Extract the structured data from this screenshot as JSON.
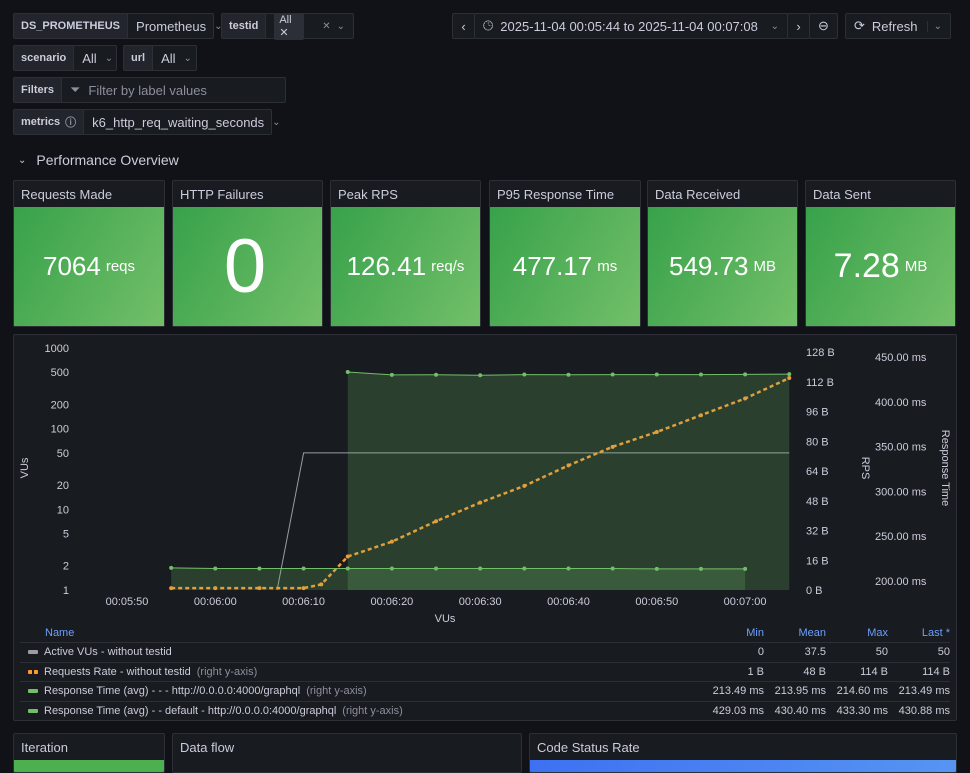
{
  "vars": {
    "ds": {
      "label": "DS_PROMETHEUS",
      "value": "Prometheus"
    },
    "testid": {
      "label": "testid",
      "chip": "All"
    },
    "scenario": {
      "label": "scenario",
      "value": "All"
    },
    "url": {
      "label": "url",
      "value": "All"
    },
    "filters": {
      "label": "Filters",
      "placeholder": "Filter by label values"
    },
    "metrics": {
      "label": "metrics",
      "value": "k6_http_req_waiting_seconds"
    }
  },
  "toolbar": {
    "time_range": "2025-11-04 00:05:44 to 2025-11-04 00:07:08",
    "refresh": "Refresh"
  },
  "row_title": "Performance Overview",
  "stats": [
    {
      "title": "Requests Made",
      "value": "7064",
      "unit": "reqs"
    },
    {
      "title": "HTTP Failures",
      "value": "0",
      "unit": ""
    },
    {
      "title": "Peak RPS",
      "value": "126.41",
      "unit": "req/s"
    },
    {
      "title": "P95 Response Time",
      "value": "477.17",
      "unit": "ms"
    },
    {
      "title": "Data Received",
      "value": "549.73",
      "unit": "MB"
    },
    {
      "title": "Data Sent",
      "value": "7.28",
      "unit": "MB"
    }
  ],
  "chart_data": {
    "type": "line",
    "xlabel": "VUs",
    "ylabel_left": "VUs",
    "ylabel_rps": "RPS",
    "ylabel_rt": "Response Time",
    "x_ticks": [
      "00:05:50",
      "00:06:00",
      "00:06:10",
      "00:06:20",
      "00:06:30",
      "00:06:40",
      "00:06:50",
      "00:07:00"
    ],
    "left_ticks": [
      "1",
      "2",
      "5",
      "10",
      "20",
      "50",
      "100",
      "200",
      "500",
      "1000"
    ],
    "left_scale": "log",
    "left_range": [
      1,
      1000
    ],
    "rps_ticks": [
      "0 B",
      "16 B",
      "32 B",
      "48 B",
      "64 B",
      "80 B",
      "96 B",
      "112 B",
      "128 B"
    ],
    "rps_range": [
      0,
      128
    ],
    "rt_ticks": [
      "200.00 ms",
      "250.00 ms",
      "300.00 ms",
      "350.00 ms",
      "400.00 ms",
      "450.00 ms"
    ],
    "rt_range": [
      200,
      450
    ],
    "series": [
      {
        "name": "Active VUs - without testid",
        "axis": "left",
        "color": "#9b9ba6",
        "points": [
          [
            "00:06:07",
            0
          ],
          [
            "00:06:10",
            50
          ],
          [
            "00:07:05",
            50
          ]
        ]
      },
      {
        "name": "Requests Rate - without testid",
        "axis": "rps",
        "color": "#ff9830",
        "dashed": true,
        "points": [
          [
            "00:05:55",
            1
          ],
          [
            "00:06:00",
            1
          ],
          [
            "00:06:05",
            1
          ],
          [
            "00:06:10",
            1
          ],
          [
            "00:06:12",
            3
          ],
          [
            "00:06:15",
            18
          ],
          [
            "00:06:20",
            26
          ],
          [
            "00:06:25",
            37
          ],
          [
            "00:06:30",
            47
          ],
          [
            "00:06:35",
            56
          ],
          [
            "00:06:40",
            67
          ],
          [
            "00:06:45",
            77
          ],
          [
            "00:06:50",
            85
          ],
          [
            "00:06:55",
            94
          ],
          [
            "00:07:00",
            103
          ],
          [
            "00:07:05",
            114
          ]
        ]
      },
      {
        "name": "Response Time (avg) - - - http://0.0.0.0:4000/graphql",
        "axis": "rt",
        "color": "#73bf69",
        "fill": true,
        "points": [
          [
            "00:05:55",
            214.6
          ],
          [
            "00:06:00",
            213.9
          ],
          [
            "00:06:05",
            213.9
          ],
          [
            "00:06:10",
            213.9
          ],
          [
            "00:06:15",
            213.9
          ],
          [
            "00:06:20",
            213.9
          ],
          [
            "00:06:25",
            213.9
          ],
          [
            "00:06:30",
            213.9
          ],
          [
            "00:06:35",
            213.9
          ],
          [
            "00:06:40",
            213.9
          ],
          [
            "00:06:45",
            213.9
          ],
          [
            "00:06:50",
            213.5
          ],
          [
            "00:06:55",
            213.5
          ],
          [
            "00:07:00",
            213.49
          ]
        ]
      },
      {
        "name": "Response Time (avg) - - default - http://0.0.0.0:4000/graphql",
        "axis": "rt",
        "color": "#73bf69",
        "fill": true,
        "points": [
          [
            "00:06:15",
            433.3
          ],
          [
            "00:06:20",
            430
          ],
          [
            "00:06:25",
            430.2
          ],
          [
            "00:06:30",
            429.6
          ],
          [
            "00:06:35",
            430.4
          ],
          [
            "00:06:40",
            430.2
          ],
          [
            "00:06:45",
            430.4
          ],
          [
            "00:06:50",
            430.4
          ],
          [
            "00:06:55",
            430.4
          ],
          [
            "00:07:00",
            430.6
          ],
          [
            "00:07:05",
            430.88
          ]
        ]
      }
    ]
  },
  "legend": {
    "headers": [
      "Name",
      "Min",
      "Mean",
      "Max",
      "Last *"
    ],
    "rows": [
      {
        "name": "Active VUs - without testid",
        "suffix": "",
        "color": "#9b9ba6",
        "min": "0",
        "mean": "37.5",
        "max": "50",
        "last": "50"
      },
      {
        "name": "Requests Rate - without testid",
        "suffix": "(right y-axis)",
        "color": "#ff9830",
        "min": "1 B",
        "mean": "48 B",
        "max": "114 B",
        "last": "114 B"
      },
      {
        "name": "Response Time (avg) - - - http://0.0.0.0:4000/graphql",
        "suffix": "(right y-axis)",
        "color": "#73bf69",
        "min": "213.49 ms",
        "mean": "213.95 ms",
        "max": "214.60 ms",
        "last": "213.49 ms"
      },
      {
        "name": "Response Time (avg) - - default - http://0.0.0.0:4000/graphql",
        "suffix": "(right y-axis)",
        "color": "#73bf69",
        "min": "429.03 ms",
        "mean": "430.40 ms",
        "max": "433.30 ms",
        "last": "430.88 ms"
      }
    ]
  },
  "bottom_panels": [
    "Iteration",
    "Data flow",
    "Code Status Rate"
  ]
}
